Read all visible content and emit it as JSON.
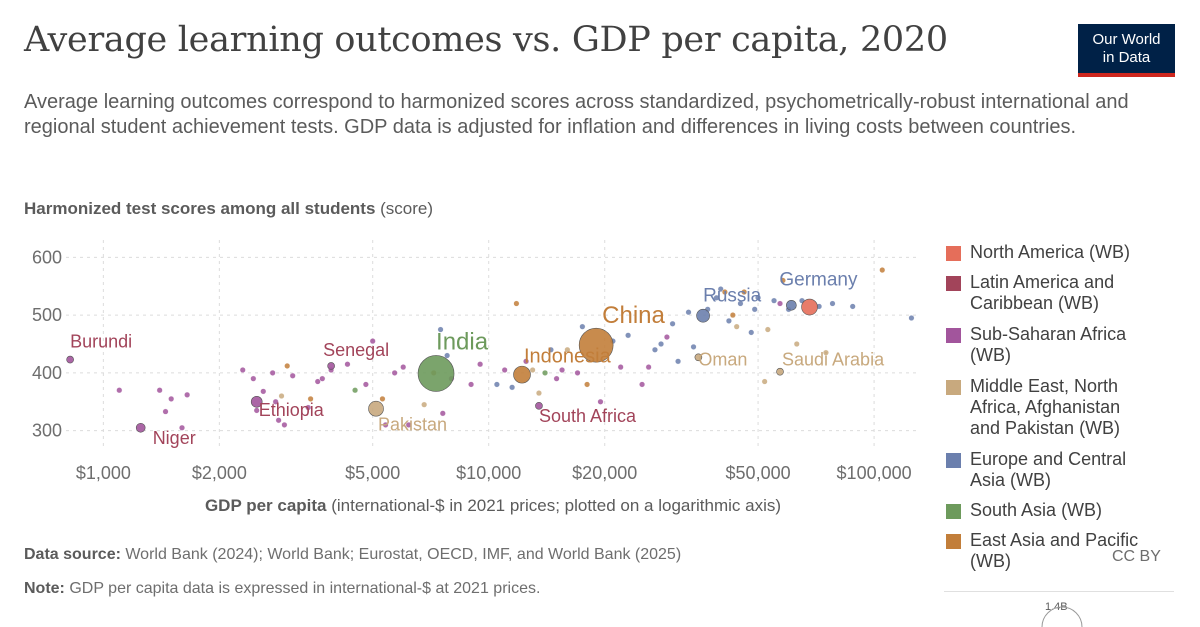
{
  "header": {
    "title": "Average learning outcomes vs. GDP per capita, 2020",
    "subtitle": "Average learning outcomes correspond to harmonized scores across standardized, psychometrically-robust international and regional student achievement tests. GDP data is adjusted for inflation and differences in living costs between countries.",
    "logo_line1": "Our World",
    "logo_line2": "in Data"
  },
  "axes": {
    "y_bold": "Harmonized test scores among all students",
    "y_unit": " (score)",
    "x_bold": "GDP per capita",
    "x_unit": " (international-$ in 2021 prices; plotted on a logarithmic axis)"
  },
  "footer": {
    "source_label": "Data source:",
    "source_text": " World Bank (2024); World Bank; Eurostat, OECD, IMF, and World Bank (2025)",
    "note_label": "Note:",
    "note_text": " GDP per capita data is expressed in international-$ at 2021 prices.",
    "license": "CC BY",
    "size_legend_label": "1.4B"
  },
  "colors": {
    "North America (WB)": "#e56e5a",
    "Latin America and Caribbean (WB)": "#a2559c",
    "Sub-Saharan Africa (WB)": "#a2559c",
    "Middle East, North Africa, Afghanistan and Pakistan (WB)": "#c8a97e",
    "Europe and Central Asia (WB)": "#6b7fad",
    "South Asia (WB)": "#6d9a5c",
    "East Asia and Pacific (WB)": "#c27e3a"
  },
  "legend_colors": [
    "#e56e5a",
    "#a2445a",
    "#a2559c",
    "#c8a97e",
    "#6b7fad",
    "#6d9a5c",
    "#c27e3a"
  ],
  "chart_data": {
    "type": "scatter",
    "title": "Average learning outcomes vs. GDP per capita, 2020",
    "xlabel": "GDP per capita (international-$ in 2021 prices; plotted on a logarithmic axis)",
    "ylabel": "Harmonized test scores among all students (score)",
    "x_scale": "log",
    "xlim": [
      800,
      130000
    ],
    "ylim": [
      270,
      630
    ],
    "x_ticks": [
      1000,
      2000,
      5000,
      10000,
      20000,
      50000,
      100000
    ],
    "x_tick_labels": [
      "$1,000",
      "$2,000",
      "$5,000",
      "$10,000",
      "$20,000",
      "$50,000",
      "$100,000"
    ],
    "y_ticks": [
      300,
      400,
      500,
      600
    ],
    "y_tick_labels": [
      "300",
      "400",
      "500",
      "600"
    ],
    "grid": true,
    "legend_position": "right",
    "series": [
      {
        "name": "North America (WB)"
      },
      {
        "name": "Latin America and Caribbean (WB)"
      },
      {
        "name": "Sub-Saharan Africa (WB)"
      },
      {
        "name": "Middle East, North Africa, Afghanistan and Pakistan (WB)"
      },
      {
        "name": "Europe and Central Asia (WB)"
      },
      {
        "name": "South Asia (WB)"
      },
      {
        "name": "East Asia and Pacific (WB)"
      }
    ],
    "legend_labels": [
      [
        "North America (WB)"
      ],
      [
        "Latin America and",
        "Caribbean (WB)"
      ],
      [
        "Sub-Saharan Africa",
        "(WB)"
      ],
      [
        "Middle East, North",
        "Africa, Afghanistan",
        "and Pakistan (WB)"
      ],
      [
        "Europe and Central",
        "Asia (WB)"
      ],
      [
        "South Asia (WB)"
      ],
      [
        "East Asia and Pacific",
        "(WB)"
      ]
    ],
    "labeled_points": [
      {
        "label": "Burundi",
        "x": 820,
        "y": 423,
        "r": 3.5,
        "region": "Sub-Saharan Africa (WB)",
        "label_size": 18
      },
      {
        "label": "Niger",
        "x": 1250,
        "y": 305,
        "r": 4.5,
        "region": "Sub-Saharan Africa (WB)",
        "label_size": 18
      },
      {
        "label": "Ethiopia",
        "x": 2500,
        "y": 350,
        "r": 5.5,
        "region": "Sub-Saharan Africa (WB)",
        "label_size": 18
      },
      {
        "label": "Senegal",
        "x": 3900,
        "y": 412,
        "r": 3.5,
        "region": "Sub-Saharan Africa (WB)",
        "label_size": 18
      },
      {
        "label": "Pakistan",
        "x": 5100,
        "y": 338,
        "r": 7.5,
        "region": "Middle East, North Africa, Afghanistan and Pakistan (WB)",
        "label_size": 18
      },
      {
        "label": "India",
        "x": 7300,
        "y": 399,
        "r": 18,
        "region": "South Asia (WB)",
        "label_size": 24
      },
      {
        "label": "Indonesia",
        "x": 12200,
        "y": 397,
        "r": 8.5,
        "region": "East Asia and Pacific (WB)",
        "label_size": 20
      },
      {
        "label": "South Africa",
        "x": 13500,
        "y": 343,
        "r": 3.5,
        "region": "Sub-Saharan Africa (WB)",
        "label_size": 18
      },
      {
        "label": "China",
        "x": 19000,
        "y": 448,
        "r": 17,
        "region": "East Asia and Pacific (WB)",
        "label_size": 24
      },
      {
        "label": "Oman",
        "x": 35000,
        "y": 427,
        "r": 3.5,
        "region": "Middle East, North Africa, Afghanistan and Pakistan (WB)",
        "label_size": 18
      },
      {
        "label": "Russia",
        "x": 36000,
        "y": 499,
        "r": 6.5,
        "region": "Europe and Central Asia (WB)",
        "label_size": 19
      },
      {
        "label": "Saudi Arabia",
        "x": 57000,
        "y": 402,
        "r": 3.5,
        "region": "Middle East, North Africa, Afghanistan and Pakistan (WB)",
        "label_size": 18
      },
      {
        "label": "Germany",
        "x": 61000,
        "y": 517,
        "r": 5,
        "region": "Europe and Central Asia (WB)",
        "label_size": 19
      },
      {
        "label": "",
        "x": 68000,
        "y": 514,
        "r": 8,
        "region": "North America (WB)",
        "label_size": 18
      }
    ],
    "points": [
      [
        1100,
        370,
        "Sub-Saharan Africa (WB)"
      ],
      [
        1400,
        370,
        "Sub-Saharan Africa (WB)"
      ],
      [
        1450,
        333,
        "Sub-Saharan Africa (WB)"
      ],
      [
        1500,
        355,
        "Sub-Saharan Africa (WB)"
      ],
      [
        1600,
        305,
        "Sub-Saharan Africa (WB)"
      ],
      [
        1650,
        362,
        "Sub-Saharan Africa (WB)"
      ],
      [
        2300,
        405,
        "Sub-Saharan Africa (WB)"
      ],
      [
        2450,
        390,
        "Sub-Saharan Africa (WB)"
      ],
      [
        2500,
        335,
        "Sub-Saharan Africa (WB)"
      ],
      [
        2600,
        368,
        "Sub-Saharan Africa (WB)"
      ],
      [
        2750,
        400,
        "Sub-Saharan Africa (WB)"
      ],
      [
        2800,
        350,
        "Sub-Saharan Africa (WB)"
      ],
      [
        2850,
        318,
        "Sub-Saharan Africa (WB)"
      ],
      [
        2900,
        360,
        "Middle East, North Africa, Afghanistan and Pakistan (WB)"
      ],
      [
        2950,
        310,
        "Sub-Saharan Africa (WB)"
      ],
      [
        3000,
        412,
        "East Asia and Pacific (WB)"
      ],
      [
        3100,
        395,
        "Sub-Saharan Africa (WB)"
      ],
      [
        3400,
        340,
        "Sub-Saharan Africa (WB)"
      ],
      [
        3450,
        355,
        "East Asia and Pacific (WB)"
      ],
      [
        3600,
        385,
        "Sub-Saharan Africa (WB)"
      ],
      [
        3700,
        390,
        "Latin America and Caribbean (WB)"
      ],
      [
        3900,
        405,
        "Latin America and Caribbean (WB)"
      ],
      [
        4300,
        415,
        "Sub-Saharan Africa (WB)"
      ],
      [
        4500,
        370,
        "South Asia (WB)"
      ],
      [
        4800,
        380,
        "Sub-Saharan Africa (WB)"
      ],
      [
        5000,
        455,
        "Sub-Saharan Africa (WB)"
      ],
      [
        5300,
        355,
        "East Asia and Pacific (WB)"
      ],
      [
        5400,
        310,
        "Sub-Saharan Africa (WB)"
      ],
      [
        5700,
        400,
        "Latin America and Caribbean (WB)"
      ],
      [
        6000,
        410,
        "Sub-Saharan Africa (WB)"
      ],
      [
        6200,
        310,
        "Sub-Saharan Africa (WB)"
      ],
      [
        6800,
        345,
        "Middle East, North Africa, Afghanistan and Pakistan (WB)"
      ],
      [
        7200,
        400,
        "East Asia and Pacific (WB)"
      ],
      [
        7500,
        475,
        "Europe and Central Asia (WB)"
      ],
      [
        7600,
        330,
        "Sub-Saharan Africa (WB)"
      ],
      [
        7800,
        430,
        "Europe and Central Asia (WB)"
      ],
      [
        8000,
        390,
        "Sub-Saharan Africa (WB)"
      ],
      [
        9000,
        380,
        "Latin America and Caribbean (WB)"
      ],
      [
        9500,
        415,
        "Latin America and Caribbean (WB)"
      ],
      [
        10500,
        380,
        "Europe and Central Asia (WB)"
      ],
      [
        11000,
        405,
        "Latin America and Caribbean (WB)"
      ],
      [
        11500,
        375,
        "Europe and Central Asia (WB)"
      ],
      [
        11800,
        520,
        "East Asia and Pacific (WB)"
      ],
      [
        12500,
        420,
        "Latin America and Caribbean (WB)"
      ],
      [
        13000,
        405,
        "Middle East, North Africa, Afghanistan and Pakistan (WB)"
      ],
      [
        13500,
        365,
        "Middle East, North Africa, Afghanistan and Pakistan (WB)"
      ],
      [
        14000,
        400,
        "South Asia (WB)"
      ],
      [
        14500,
        440,
        "Europe and Central Asia (WB)"
      ],
      [
        15000,
        390,
        "Latin America and Caribbean (WB)"
      ],
      [
        15500,
        405,
        "Latin America and Caribbean (WB)"
      ],
      [
        16000,
        440,
        "Middle East, North Africa, Afghanistan and Pakistan (WB)"
      ],
      [
        17000,
        400,
        "Latin America and Caribbean (WB)"
      ],
      [
        17500,
        480,
        "Europe and Central Asia (WB)"
      ],
      [
        18000,
        380,
        "East Asia and Pacific (WB)"
      ],
      [
        19500,
        350,
        "Latin America and Caribbean (WB)"
      ],
      [
        21000,
        455,
        "Europe and Central Asia (WB)"
      ],
      [
        22000,
        410,
        "Latin America and Caribbean (WB)"
      ],
      [
        23000,
        465,
        "Europe and Central Asia (WB)"
      ],
      [
        25000,
        380,
        "Sub-Saharan Africa (WB)"
      ],
      [
        26000,
        410,
        "Latin America and Caribbean (WB)"
      ],
      [
        27000,
        440,
        "Europe and Central Asia (WB)"
      ],
      [
        28000,
        450,
        "Europe and Central Asia (WB)"
      ],
      [
        29000,
        462,
        "Latin America and Caribbean (WB)"
      ],
      [
        30000,
        485,
        "Europe and Central Asia (WB)"
      ],
      [
        31000,
        420,
        "Europe and Central Asia (WB)"
      ],
      [
        33000,
        505,
        "Europe and Central Asia (WB)"
      ],
      [
        34000,
        445,
        "Europe and Central Asia (WB)"
      ],
      [
        37000,
        510,
        "Europe and Central Asia (WB)"
      ],
      [
        39000,
        530,
        "Europe and Central Asia (WB)"
      ],
      [
        40000,
        545,
        "Europe and Central Asia (WB)"
      ],
      [
        41000,
        540,
        "East Asia and Pacific (WB)"
      ],
      [
        42000,
        490,
        "Europe and Central Asia (WB)"
      ],
      [
        43000,
        500,
        "East Asia and Pacific (WB)"
      ],
      [
        44000,
        480,
        "Middle East, North Africa, Afghanistan and Pakistan (WB)"
      ],
      [
        45000,
        520,
        "Europe and Central Asia (WB)"
      ],
      [
        46000,
        540,
        "East Asia and Pacific (WB)"
      ],
      [
        48000,
        470,
        "Europe and Central Asia (WB)"
      ],
      [
        49000,
        510,
        "Europe and Central Asia (WB)"
      ],
      [
        50000,
        530,
        "Europe and Central Asia (WB)"
      ],
      [
        52000,
        385,
        "Middle East, North Africa, Afghanistan and Pakistan (WB)"
      ],
      [
        53000,
        475,
        "Middle East, North Africa, Afghanistan and Pakistan (WB)"
      ],
      [
        55000,
        525,
        "Europe and Central Asia (WB)"
      ],
      [
        57000,
        520,
        "Latin America and Caribbean (WB)"
      ],
      [
        58000,
        560,
        "East Asia and Pacific (WB)"
      ],
      [
        60000,
        510,
        "Europe and Central Asia (WB)"
      ],
      [
        63000,
        450,
        "Middle East, North Africa, Afghanistan and Pakistan (WB)"
      ],
      [
        65000,
        525,
        "Europe and Central Asia (WB)"
      ],
      [
        72000,
        515,
        "Europe and Central Asia (WB)"
      ],
      [
        75000,
        435,
        "Middle East, North Africa, Afghanistan and Pakistan (WB)"
      ],
      [
        78000,
        520,
        "Europe and Central Asia (WB)"
      ],
      [
        88000,
        515,
        "Europe and Central Asia (WB)"
      ],
      [
        105000,
        578,
        "East Asia and Pacific (WB)"
      ],
      [
        125000,
        495,
        "Europe and Central Asia (WB)"
      ]
    ]
  }
}
